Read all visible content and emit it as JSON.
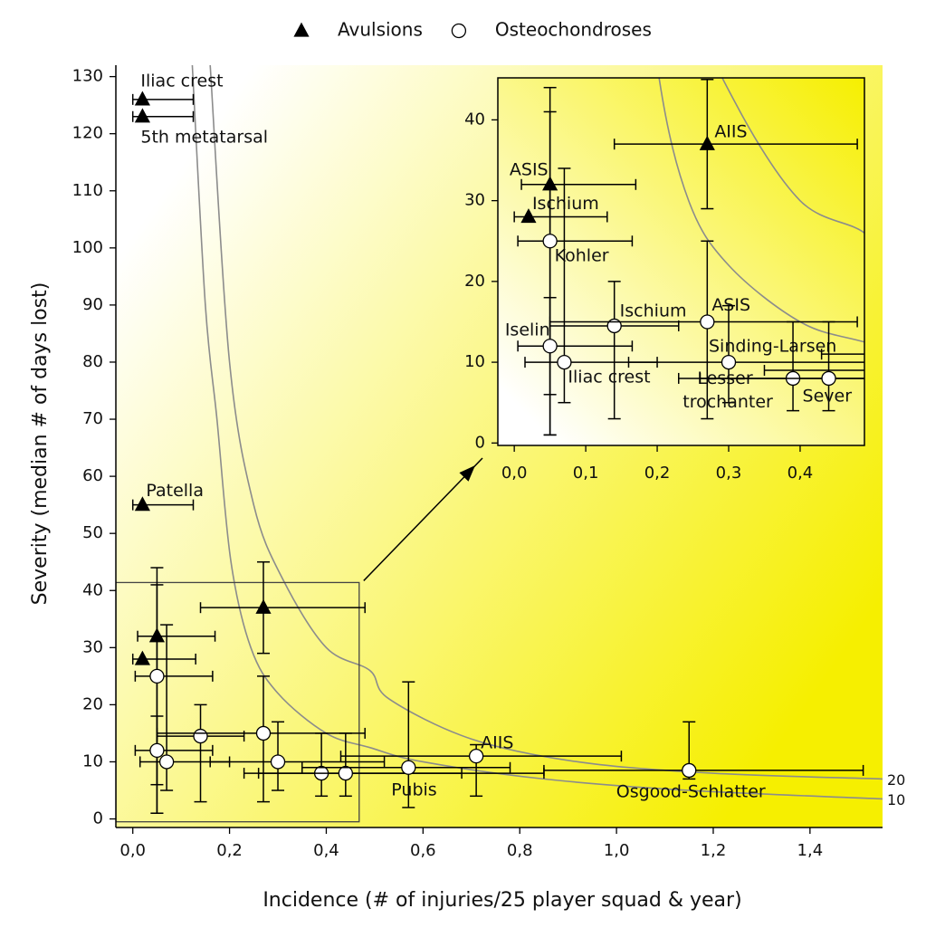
{
  "chart_data": {
    "type": "scatter",
    "legend": "top",
    "xlabel": "Incidence (# of injuries/25 player squad & year)",
    "ylabel": "Severity (median # of days lost)",
    "xlim": [
      -0.035,
      1.55
    ],
    "ylim": [
      -1.5,
      132
    ],
    "xticks": [
      {
        "value": 0,
        "label": "0,0"
      },
      {
        "value": 0.2,
        "label": "0,2"
      },
      {
        "value": 0.4,
        "label": "0,4"
      },
      {
        "value": 0.6,
        "label": "0,6"
      },
      {
        "value": 0.8,
        "label": "0,8"
      },
      {
        "value": 1.0,
        "label": "1,0"
      },
      {
        "value": 1.2,
        "label": "1,2"
      },
      {
        "value": 1.4,
        "label": "1,4"
      }
    ],
    "yticks": [
      0,
      10,
      20,
      30,
      40,
      50,
      60,
      70,
      80,
      90,
      100,
      110,
      120,
      130
    ],
    "series": [
      {
        "name": "Avulsions",
        "marker": "triangle",
        "color": "#000000",
        "x": [
          0.02,
          0.02,
          0.02,
          0.27,
          0.05,
          0.02
        ],
        "values": [
          126,
          123,
          55,
          37,
          32,
          28
        ],
        "x_lo": [
          0,
          0,
          0,
          0.14,
          0.01,
          0
        ],
        "x_hi": [
          0.125,
          0.125,
          0.125,
          0.48,
          0.17,
          0.13
        ],
        "y_lo": [
          null,
          null,
          null,
          29,
          6,
          null
        ],
        "y_hi": [
          null,
          null,
          null,
          45,
          44,
          null
        ],
        "labels": [
          "Iliac crest",
          "5th metatarsal",
          "Patella",
          null,
          null,
          null
        ],
        "inset_labels": [
          null,
          null,
          null,
          "AIIS",
          "ASIS",
          "Ischium"
        ]
      },
      {
        "name": "Osteochondroses",
        "marker": "circle",
        "color": "#ffffff",
        "x": [
          0.05,
          0.14,
          0.27,
          0.05,
          0.07,
          0.3,
          0.39,
          0.44,
          0.57,
          0.71,
          1.15
        ],
        "values": [
          25,
          14.5,
          15,
          12,
          10,
          10,
          8,
          8,
          9,
          11,
          8.5
        ],
        "x_lo": [
          0.005,
          0.05,
          0.05,
          0.005,
          0.015,
          0.16,
          0.23,
          0.26,
          0.35,
          0.43,
          0.85
        ],
        "x_hi": [
          0.165,
          0.23,
          0.48,
          0.165,
          0.2,
          0.52,
          0.68,
          0.85,
          0.78,
          1.01,
          1.51
        ],
        "y_lo": [
          1,
          3,
          3,
          1,
          5,
          5,
          4,
          4,
          2,
          4,
          7
        ],
        "y_hi": [
          41,
          20,
          25,
          18,
          34,
          17,
          15,
          15,
          24,
          13,
          17
        ],
        "labels": [
          null,
          null,
          null,
          null,
          null,
          null,
          null,
          null,
          "Pubis",
          "AIIS",
          "Osgood-Schlatter"
        ],
        "inset_labels": [
          "Kohler",
          "Ischium",
          "ASIS",
          "Iselin",
          "Iliac crest",
          "Sinding-Larsen",
          "Lesser trochanter",
          "Sever",
          null,
          null,
          null
        ]
      }
    ],
    "curves": [
      {
        "name": "20",
        "color": "#8c8c8c",
        "x": [
          0.16,
          0.2,
          0.25,
          0.31,
          0.4,
          0.49,
          0.53,
          0.7,
          0.92,
          1.2,
          1.55
        ],
        "y": [
          132,
          80,
          55,
          42,
          30,
          26,
          21,
          14,
          10,
          8,
          7
        ]
      },
      {
        "name": "10",
        "color": "#8c8c8c",
        "x": [
          0.123,
          0.15,
          0.174,
          0.203,
          0.244,
          0.3,
          0.4,
          0.49,
          0.6,
          0.85,
          1.15,
          1.55
        ],
        "y": [
          132,
          90,
          70,
          45,
          30,
          22,
          15,
          12.5,
          10,
          7,
          5,
          3.5
        ]
      }
    ],
    "inset": {
      "xlim": [
        -0.023,
        0.49
      ],
      "ylim": [
        -0.3,
        45.2
      ],
      "xticks": [
        {
          "value": 0,
          "label": "0,0"
        },
        {
          "value": 0.1,
          "label": "0,1"
        },
        {
          "value": 0.2,
          "label": "0,2"
        },
        {
          "value": 0.3,
          "label": "0,3"
        },
        {
          "value": 0.4,
          "label": "0,4"
        }
      ],
      "yticks": [
        0,
        10,
        20,
        30,
        40
      ],
      "region": {
        "xlim": [
          -0.035,
          0.468
        ],
        "ylim": [
          -0.5,
          41.4
        ]
      }
    }
  }
}
